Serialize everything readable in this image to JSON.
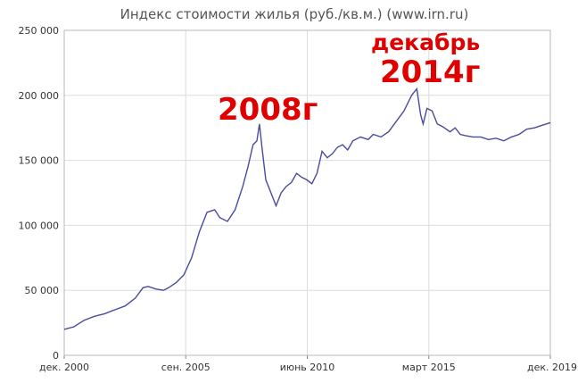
{
  "chart_data": {
    "type": "line",
    "title": "Индекс стоимости жилья (руб./кв.м.) (www.irn.ru)",
    "xlabel": "",
    "ylabel": "",
    "x_ticks": [
      "дек. 2000",
      "сен. 2005",
      "июнь 2010",
      "март 2015",
      "дек. 2019"
    ],
    "x_tick_values": [
      2000.92,
      2005.67,
      2010.42,
      2015.17,
      2019.92
    ],
    "xlim": [
      2000.92,
      2019.92
    ],
    "y_ticks": [
      "0",
      "50 000",
      "100 000",
      "150 000",
      "200 000",
      "250 000"
    ],
    "y_tick_values": [
      0,
      50000,
      100000,
      150000,
      200000,
      250000
    ],
    "ylim": [
      0,
      250000
    ],
    "grid": true,
    "series": [
      {
        "x": [
          2000.92,
          2001.3,
          2001.7,
          2002.1,
          2002.5,
          2002.9,
          2003.3,
          2003.7,
          2004.0,
          2004.2,
          2004.5,
          2004.8,
          2005.0,
          2005.3,
          2005.6,
          2005.9,
          2006.2,
          2006.5,
          2006.8,
          2007.0,
          2007.3,
          2007.6,
          2007.9,
          2008.1,
          2008.3,
          2008.45,
          2008.55,
          2008.65,
          2008.8,
          2009.0,
          2009.2,
          2009.4,
          2009.6,
          2009.8,
          2010.0,
          2010.2,
          2010.4,
          2010.6,
          2010.8,
          2011.0,
          2011.2,
          2011.4,
          2011.6,
          2011.8,
          2012.0,
          2012.2,
          2012.5,
          2012.8,
          2013.0,
          2013.3,
          2013.6,
          2013.9,
          2014.2,
          2014.5,
          2014.7,
          2014.85,
          2014.95,
          2015.1,
          2015.3,
          2015.5,
          2015.7,
          2016.0,
          2016.2,
          2016.4,
          2016.6,
          2016.9,
          2017.2,
          2017.5,
          2017.8,
          2018.1,
          2018.4,
          2018.7,
          2019.0,
          2019.3,
          2019.6,
          2019.92
        ],
        "values": [
          20000,
          22000,
          27000,
          30000,
          32000,
          35000,
          38000,
          44000,
          52000,
          53000,
          51000,
          50000,
          52000,
          56000,
          62000,
          75000,
          95000,
          110000,
          112000,
          106000,
          103000,
          112000,
          130000,
          145000,
          162000,
          165000,
          178000,
          160000,
          135000,
          125000,
          115000,
          125000,
          130000,
          133000,
          140000,
          137000,
          135000,
          132000,
          140000,
          157000,
          152000,
          155000,
          160000,
          162000,
          158000,
          165000,
          168000,
          166000,
          170000,
          168000,
          172000,
          180000,
          188000,
          200000,
          205000,
          185000,
          178000,
          190000,
          188000,
          178000,
          176000,
          172000,
          175000,
          170000,
          169000,
          168000,
          168000,
          166000,
          167000,
          165000,
          168000,
          170000,
          174000,
          175000,
          177000,
          179000
        ]
      }
    ],
    "annotations": [
      "2008г",
      "декабрь",
      "2014г"
    ],
    "line_color": "#4a4aa0",
    "annotation_color": "#e00000"
  }
}
